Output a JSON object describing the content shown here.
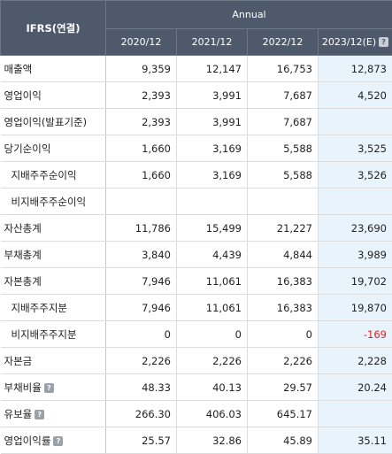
{
  "header": {
    "corner": "IFRS(연결)",
    "group": "Annual",
    "periods": [
      "2020/12",
      "2021/12",
      "2022/12",
      "2023/12(E)"
    ]
  },
  "rows": [
    {
      "label": "매출액",
      "sub": false,
      "help": false,
      "values": [
        "9,359",
        "12,147",
        "16,753",
        "12,873"
      ]
    },
    {
      "label": "영업이익",
      "sub": false,
      "help": false,
      "values": [
        "2,393",
        "3,991",
        "7,687",
        "4,520"
      ]
    },
    {
      "label": "영업이익(발표기준)",
      "sub": false,
      "help": false,
      "values": [
        "2,393",
        "3,991",
        "7,687",
        ""
      ]
    },
    {
      "label": "당기순이익",
      "sub": false,
      "help": false,
      "values": [
        "1,660",
        "3,169",
        "5,588",
        "3,525"
      ]
    },
    {
      "label": "지배주주순이익",
      "sub": true,
      "help": false,
      "values": [
        "1,660",
        "3,169",
        "5,588",
        "3,526"
      ]
    },
    {
      "label": "비지배주주순이익",
      "sub": true,
      "help": false,
      "values": [
        "",
        "",
        "",
        ""
      ]
    },
    {
      "label": "자산총계",
      "sub": false,
      "help": false,
      "values": [
        "11,786",
        "15,499",
        "21,227",
        "23,690"
      ]
    },
    {
      "label": "부채총계",
      "sub": false,
      "help": false,
      "values": [
        "3,840",
        "4,439",
        "4,844",
        "3,989"
      ]
    },
    {
      "label": "자본총계",
      "sub": false,
      "help": false,
      "values": [
        "7,946",
        "11,061",
        "16,383",
        "19,702"
      ]
    },
    {
      "label": "지배주주지분",
      "sub": true,
      "help": false,
      "values": [
        "7,946",
        "11,061",
        "16,383",
        "19,870"
      ]
    },
    {
      "label": "비지배주주지분",
      "sub": true,
      "help": false,
      "values": [
        "0",
        "0",
        "0",
        "-169"
      ]
    },
    {
      "label": "자본금",
      "sub": false,
      "help": false,
      "values": [
        "2,226",
        "2,226",
        "2,226",
        "2,228"
      ]
    },
    {
      "label": "부채비율",
      "sub": false,
      "help": true,
      "values": [
        "48.33",
        "40.13",
        "29.57",
        "20.24"
      ]
    },
    {
      "label": "유보율",
      "sub": false,
      "help": true,
      "values": [
        "266.30",
        "406.03",
        "645.17",
        ""
      ]
    },
    {
      "label": "영업이익률",
      "sub": false,
      "help": true,
      "values": [
        "25.57",
        "32.86",
        "45.89",
        "35.11"
      ]
    }
  ],
  "icons": {
    "help": "help-icon"
  },
  "colors": {
    "header_bg": "#4e5a6b",
    "estimate_bg": "#e9f3fb",
    "negative": "#e02020"
  }
}
